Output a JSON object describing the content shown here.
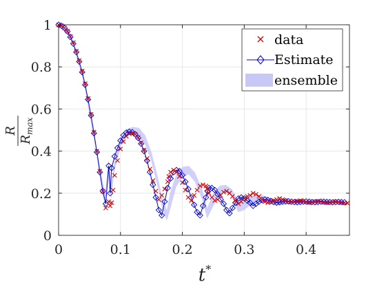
{
  "chart_data": {
    "type": "scatter",
    "title": "",
    "xlabel": {
      "base": "t",
      "sup": "*"
    },
    "ylabel": {
      "num": "R",
      "den_base": "R",
      "den_sub": "max"
    },
    "xlim": [
      0,
      0.47
    ],
    "ylim": [
      0,
      1
    ],
    "xticks": [
      "0",
      "0.1",
      "0.2",
      "0.3",
      "0.4"
    ],
    "yticks": [
      "0",
      "0.2",
      "0.4",
      "0.6",
      "0.8",
      "1"
    ],
    "grid": true,
    "legend_position": "top-right",
    "legend": [
      "data",
      "Estimate",
      "ensemble"
    ],
    "colors": {
      "data": "#d40000",
      "estimate": "#0000cc",
      "ensemble": "#c8c8f7",
      "grid": "#e6e6e6",
      "axis": "#262626"
    },
    "series": [
      {
        "name": "data",
        "marker": "x",
        "x": [
          0.0,
          0.0048,
          0.0095,
          0.0143,
          0.019,
          0.0238,
          0.0286,
          0.0333,
          0.0381,
          0.0429,
          0.0476,
          0.0524,
          0.0571,
          0.0619,
          0.0667,
          0.0714,
          0.0762,
          0.081,
          0.0833,
          0.0857,
          0.088,
          0.0905,
          0.0952,
          0.1,
          0.1048,
          0.1095,
          0.1143,
          0.119,
          0.1238,
          0.1286,
          0.1333,
          0.1381,
          0.1429,
          0.1476,
          0.1524,
          0.1571,
          0.1619,
          0.1667,
          0.1714,
          0.1762,
          0.178,
          0.181,
          0.1857,
          0.1905,
          0.1952,
          0.2,
          0.2048,
          0.2095,
          0.2143,
          0.219,
          0.2238,
          0.2286,
          0.2333,
          0.2381,
          0.2405,
          0.2429,
          0.2476,
          0.2524,
          0.2571,
          0.2619,
          0.2667,
          0.2714,
          0.2762,
          0.281,
          0.2857,
          0.2905,
          0.2952,
          0.3,
          0.3048,
          0.3095,
          0.3143,
          0.319,
          0.3238,
          0.3286,
          0.3333,
          0.3381,
          0.3429,
          0.3476,
          0.3524,
          0.3571,
          0.3619,
          0.3667,
          0.3714,
          0.3762,
          0.381,
          0.3857,
          0.3905,
          0.3952,
          0.4,
          0.4048,
          0.4095,
          0.4143,
          0.419,
          0.4238,
          0.4286,
          0.4333,
          0.4381,
          0.4429,
          0.4476,
          0.4524,
          0.4571,
          0.4619,
          0.4667
        ],
        "y": [
          1.0,
          0.995,
          0.985,
          0.97,
          0.945,
          0.915,
          0.875,
          0.83,
          0.78,
          0.72,
          0.65,
          0.575,
          0.49,
          0.4,
          0.305,
          0.21,
          0.13,
          0.16,
          0.14,
          0.155,
          0.215,
          0.285,
          0.355,
          0.41,
          0.445,
          0.47,
          0.482,
          0.485,
          0.48,
          0.465,
          0.44,
          0.405,
          0.365,
          0.315,
          0.26,
          0.21,
          0.17,
          0.19,
          0.22,
          0.255,
          0.28,
          0.3,
          0.31,
          0.3,
          0.28,
          0.25,
          0.215,
          0.18,
          0.165,
          0.19,
          0.215,
          0.235,
          0.24,
          0.235,
          0.22,
          0.2,
          0.18,
          0.165,
          0.17,
          0.19,
          0.205,
          0.21,
          0.2,
          0.185,
          0.165,
          0.15,
          0.16,
          0.175,
          0.185,
          0.19,
          0.2,
          0.195,
          0.185,
          0.17,
          0.16,
          0.155,
          0.16,
          0.165,
          0.17,
          0.175,
          0.17,
          0.165,
          0.16,
          0.158,
          0.16,
          0.163,
          0.165,
          0.162,
          0.158,
          0.155,
          0.157,
          0.16,
          0.162,
          0.16,
          0.157,
          0.155,
          0.156,
          0.158,
          0.16,
          0.158,
          0.155,
          0.154,
          0.153
        ]
      },
      {
        "name": "Estimate",
        "marker": "diamond",
        "x": [
          0.0,
          0.0048,
          0.0095,
          0.0143,
          0.019,
          0.0238,
          0.0286,
          0.0333,
          0.0381,
          0.0429,
          0.0476,
          0.0524,
          0.0571,
          0.0619,
          0.0667,
          0.0714,
          0.0762,
          0.081,
          0.0833,
          0.0857,
          0.0905,
          0.0952,
          0.1,
          0.1048,
          0.1095,
          0.1143,
          0.119,
          0.1238,
          0.1286,
          0.1333,
          0.1381,
          0.1429,
          0.1476,
          0.1524,
          0.1571,
          0.1619,
          0.1667,
          0.1714,
          0.1762,
          0.181,
          0.1857,
          0.1905,
          0.1952,
          0.2,
          0.2048,
          0.2095,
          0.2143,
          0.219,
          0.2238,
          0.2286,
          0.2333,
          0.2381,
          0.2405,
          0.2429,
          0.2476,
          0.2524,
          0.2571,
          0.2619,
          0.2667,
          0.2714,
          0.2762,
          0.281,
          0.2857,
          0.2905,
          0.2952,
          0.3,
          0.3048,
          0.3095,
          0.3143,
          0.319,
          0.3238,
          0.3286,
          0.3333,
          0.3381,
          0.3429,
          0.3476,
          0.3524,
          0.3571,
          0.3619,
          0.3667,
          0.3714,
          0.3762,
          0.381,
          0.3857,
          0.3905,
          0.3952,
          0.4,
          0.4048,
          0.4095,
          0.4143,
          0.419,
          0.4238,
          0.4286,
          0.4333,
          0.4381,
          0.4429,
          0.4476,
          0.4524,
          0.4571,
          0.4619
        ],
        "y": [
          1.0,
          0.995,
          0.985,
          0.968,
          0.942,
          0.91,
          0.87,
          0.825,
          0.775,
          0.715,
          0.645,
          0.57,
          0.485,
          0.395,
          0.3,
          0.21,
          0.15,
          0.33,
          0.2,
          0.32,
          0.375,
          0.415,
          0.45,
          0.475,
          0.488,
          0.492,
          0.49,
          0.48,
          0.462,
          0.435,
          0.4,
          0.355,
          0.3,
          0.24,
          0.18,
          0.12,
          0.095,
          0.16,
          0.225,
          0.27,
          0.3,
          0.31,
          0.305,
          0.285,
          0.255,
          0.22,
          0.18,
          0.145,
          0.11,
          0.095,
          0.14,
          0.18,
          0.21,
          0.225,
          0.225,
          0.215,
          0.195,
          0.17,
          0.15,
          0.12,
          0.105,
          0.13,
          0.155,
          0.175,
          0.18,
          0.175,
          0.165,
          0.155,
          0.14,
          0.15,
          0.16,
          0.168,
          0.17,
          0.168,
          0.163,
          0.158,
          0.155,
          0.157,
          0.16,
          0.162,
          0.162,
          0.16,
          0.158,
          0.157,
          0.158,
          0.16,
          0.161,
          0.16,
          0.158,
          0.157,
          0.158,
          0.16,
          0.16,
          0.159,
          0.158,
          0.157,
          0.158,
          0.159,
          0.158,
          0.157
        ]
      }
    ],
    "ensemble_band": {
      "name": "ensemble",
      "x": [
        0.0,
        0.02,
        0.04,
        0.06,
        0.075,
        0.081,
        0.085,
        0.09,
        0.1,
        0.11,
        0.12,
        0.13,
        0.14,
        0.15,
        0.16,
        0.168,
        0.175,
        0.18,
        0.19,
        0.2,
        0.21,
        0.22,
        0.232,
        0.24,
        0.25,
        0.26,
        0.27,
        0.28,
        0.29,
        0.3,
        0.31,
        0.32,
        0.33,
        0.34,
        0.35,
        0.36,
        0.38,
        0.4,
        0.42,
        0.44,
        0.46
      ],
      "upper": [
        1.0,
        0.95,
        0.76,
        0.43,
        0.2,
        0.36,
        0.25,
        0.35,
        0.455,
        0.505,
        0.515,
        0.51,
        0.475,
        0.395,
        0.28,
        0.175,
        0.12,
        0.2,
        0.29,
        0.325,
        0.33,
        0.3,
        0.22,
        0.13,
        0.2,
        0.235,
        0.24,
        0.22,
        0.16,
        0.16,
        0.185,
        0.192,
        0.19,
        0.18,
        0.17,
        0.168,
        0.17,
        0.168,
        0.168,
        0.168,
        0.167
      ],
      "lower": [
        1.0,
        0.935,
        0.735,
        0.405,
        0.13,
        0.3,
        0.17,
        0.3,
        0.42,
        0.475,
        0.48,
        0.47,
        0.43,
        0.35,
        0.23,
        0.12,
        0.07,
        0.12,
        0.23,
        0.275,
        0.29,
        0.255,
        0.17,
        0.08,
        0.14,
        0.19,
        0.205,
        0.185,
        0.11,
        0.12,
        0.145,
        0.155,
        0.155,
        0.148,
        0.143,
        0.145,
        0.148,
        0.148,
        0.148,
        0.148,
        0.148
      ]
    }
  }
}
